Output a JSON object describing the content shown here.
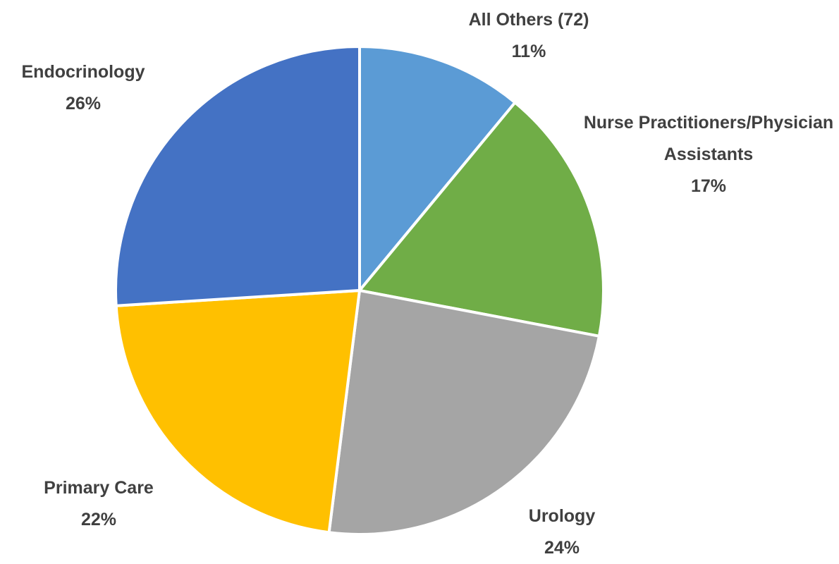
{
  "chart_data": {
    "type": "pie",
    "categories": [
      "All Others (72)",
      "Nurse Practitioners/Physician Assistants",
      "Urology",
      "Primary Care",
      "Endocrinology"
    ],
    "values": [
      11,
      17,
      24,
      22,
      26
    ],
    "value_labels": [
      "11%",
      "17%",
      "24%",
      "22%",
      "26%"
    ],
    "colors": [
      "#5b9bd5",
      "#70ad47",
      "#a5a5a5",
      "#ffc000",
      "#4472c4"
    ]
  }
}
